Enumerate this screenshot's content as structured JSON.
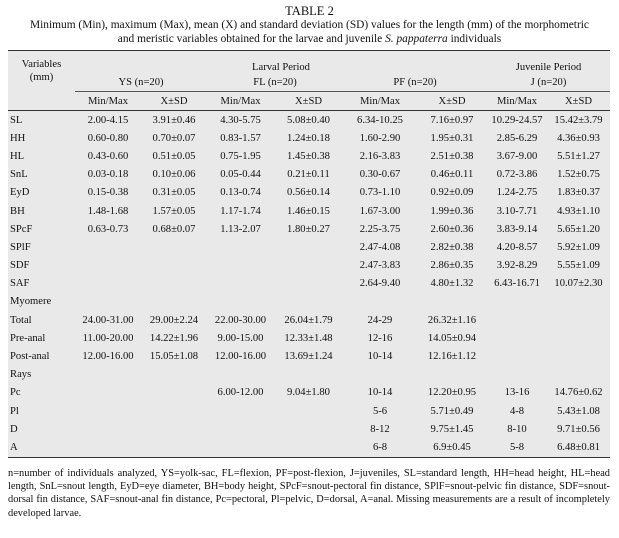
{
  "title": "TABLE 2",
  "caption": {
    "line1": "Minimum (Min), maximum (Max), mean (X) and standard deviation (SD) values for the length (mm) of the morphometric",
    "line2_prefix": "and meristic variables obtained for the larvae and juvenile ",
    "species": "S. pappaterra",
    "line2_suffix": " individuals"
  },
  "header": {
    "variables_line1": "Variables",
    "variables_line2": "(mm)",
    "larval_period": "Larval Period",
    "juvenile_period": "Juvenile Period",
    "groups": [
      "YS (n=20)",
      "FL (n=20)",
      "PF (n=20)",
      "J (n=20)"
    ],
    "subheads": [
      "Min/Max",
      "X±SD",
      "Min/Max",
      "X±SD",
      "Min/Max",
      "X±SD",
      "Min/Max",
      "X±SD"
    ]
  },
  "rows": [
    {
      "label": "SL",
      "cells": [
        "2.00-4.15",
        "3.91±0.46",
        "4.30-5.75",
        "5.08±0.40",
        "6.34-10.25",
        "7.16±0.97",
        "10.29-24.57",
        "15.42±3.79"
      ]
    },
    {
      "label": "HH",
      "cells": [
        "0.60-0.80",
        "0.70±0.07",
        "0.83-1.57",
        "1.24±0.18",
        "1.60-2.90",
        "1.95±0.31",
        "2.85-6.29",
        "4.36±0.93"
      ]
    },
    {
      "label": "HL",
      "cells": [
        "0.43-0.60",
        "0.51±0.05",
        "0.75-1.95",
        "1.45±0.38",
        "2.16-3.83",
        "2.51±0.38",
        "3.67-9.00",
        "5.51±1.27"
      ]
    },
    {
      "label": "SnL",
      "cells": [
        "0.03-0.18",
        "0.10±0.06",
        "0.05-0.44",
        "0.21±0.11",
        "0.30-0.67",
        "0.46±0.11",
        "0.72-3.86",
        "1.52±0.75"
      ]
    },
    {
      "label": "EyD",
      "cells": [
        "0.15-0.38",
        "0.31±0.05",
        "0.13-0.74",
        "0.56±0.14",
        "0.73-1.10",
        "0.92±0.09",
        "1.24-2.75",
        "1.83±0.37"
      ]
    },
    {
      "label": "BH",
      "cells": [
        "1.48-1.68",
        "1.57±0.05",
        "1.17-1.74",
        "1.46±0.15",
        "1.67-3.00",
        "1.99±0.36",
        "3.10-7.71",
        "4.93±1.10"
      ]
    },
    {
      "label": "SPcF",
      "cells": [
        "0.63-0.73",
        "0.68±0.07",
        "1.13-2.07",
        "1.80±0.27",
        "2.25-3.75",
        "2.60±0.36",
        "3.83-9.14",
        "5.65±1.20"
      ]
    },
    {
      "label": "SPlF",
      "cells": [
        "",
        "",
        "",
        "",
        "2.47-4.08",
        "2.82±0.38",
        "4.20-8.57",
        "5.92±1.09"
      ]
    },
    {
      "label": "SDF",
      "cells": [
        "",
        "",
        "",
        "",
        "2.47-3.83",
        "2.86±0.35",
        "3.92-8.29",
        "5.55±1.09"
      ]
    },
    {
      "label": "SAF",
      "cells": [
        "",
        "",
        "",
        "",
        "2.64-9.40",
        "4.80±1.32",
        "6.43-16.71",
        "10.07±2.30"
      ]
    },
    {
      "label": "Myomere",
      "cells": [
        "",
        "",
        "",
        "",
        "",
        "",
        "",
        ""
      ]
    },
    {
      "label": "Total",
      "cells": [
        "24.00-31.00",
        "29.00±2.24",
        "22.00-30.00",
        "26.04±1.79",
        "24-29",
        "26.32±1.16",
        "",
        ""
      ]
    },
    {
      "label": "Pre-anal",
      "cells": [
        "11.00-20.00",
        "14.22±1.96",
        "9.00-15.00",
        "12.33±1.48",
        "12-16",
        "14.05±0.94",
        "",
        ""
      ]
    },
    {
      "label": "Post-anal",
      "cells": [
        "12.00-16.00",
        "15.05±1.08",
        "12.00-16.00",
        "13.69±1.24",
        "10-14",
        "12.16±1.12",
        "",
        ""
      ]
    },
    {
      "label": "Rays",
      "cells": [
        "",
        "",
        "",
        "",
        "",
        "",
        "",
        ""
      ]
    },
    {
      "label": "Pc",
      "cells": [
        "",
        "",
        "6.00-12.00",
        "9.04±1.80",
        "10-14",
        "12.20±0.95",
        "13-16",
        "14.76±0.62"
      ]
    },
    {
      "label": "Pl",
      "cells": [
        "",
        "",
        "",
        "",
        "5-6",
        "5.71±0.49",
        "4-8",
        "5.43±1.08"
      ]
    },
    {
      "label": "D",
      "cells": [
        "",
        "",
        "",
        "",
        "8-12",
        "9.75±1.45",
        "8-10",
        "9.71±0.56"
      ]
    },
    {
      "label": "A",
      "cells": [
        "",
        "",
        "",
        "",
        "6-8",
        "6.9±0.45",
        "5-8",
        "6.48±0.81"
      ]
    }
  ],
  "notes": "n=number of individuals analyzed, YS=yolk-sac, FL=flexion, PF=post-flexion, J=juveniles, SL=standard length, HH=head height, HL=head length, SnL=snout length, EyD=eye diameter, BH=body height, SPcF=snout-pectoral fin distance, SPlF=snout-pelvic fin distance, SDF=snout-dorsal fin distance, SAF=snout-anal fin distance, Pc=pectoral, Pl=pelvic, D=dorsal, A=anal. Missing measurements are a result of incompletely developed larvae."
}
